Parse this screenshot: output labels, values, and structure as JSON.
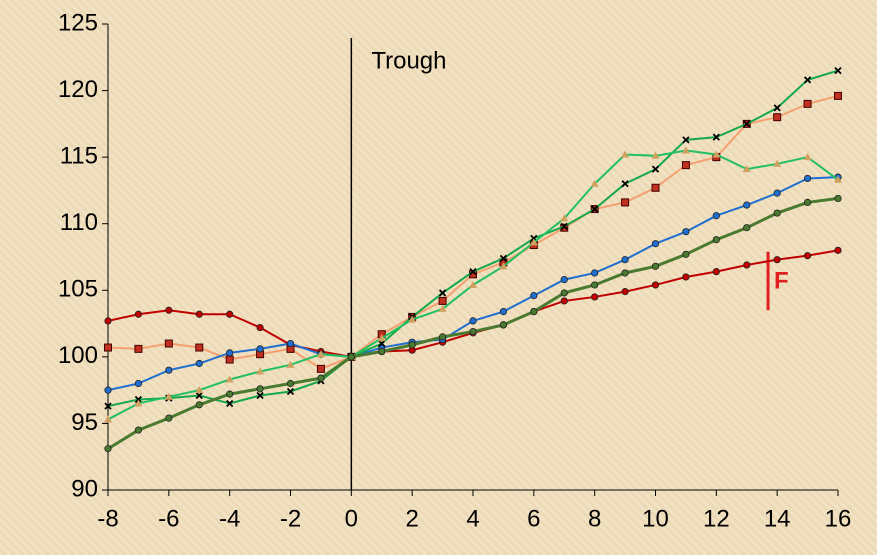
{
  "chart_data": {
    "type": "line",
    "x": [
      -8,
      -7,
      -6,
      -5,
      -4,
      -3,
      -2,
      -1,
      0,
      1,
      2,
      3,
      4,
      5,
      6,
      7,
      8,
      9,
      10,
      11,
      12,
      13,
      14,
      15,
      16
    ],
    "series": [
      {
        "color": "#c00000",
        "marker": "circle",
        "values": [
          102.7,
          103.2,
          103.5,
          103.2,
          103.2,
          102.2,
          100.9,
          100.4,
          100,
          100.4,
          100.5,
          101.1,
          101.8,
          102.4,
          103.4,
          104.2,
          104.5,
          104.9,
          105.4,
          106.0,
          106.4,
          106.9,
          107.3,
          107.6,
          108.0
        ]
      },
      {
        "color": "#f4a070",
        "marker": "square",
        "values": [
          100.7,
          100.6,
          101.0,
          100.7,
          99.8,
          100.2,
          100.6,
          99.1,
          100,
          101.7,
          103.0,
          104.2,
          106.2,
          107.1,
          108.4,
          109.7,
          111.1,
          111.6,
          112.7,
          114.4,
          115.0,
          117.5,
          118.0,
          119.0,
          119.6
        ]
      },
      {
        "color": "#1f6fd0",
        "marker": "circle",
        "values": [
          97.5,
          98.0,
          99.0,
          99.5,
          100.3,
          100.6,
          101.0,
          100.2,
          100,
          100.7,
          101.1,
          101.3,
          102.7,
          103.4,
          104.6,
          105.8,
          106.3,
          107.3,
          108.5,
          109.4,
          110.6,
          111.4,
          112.3,
          113.4,
          113.5
        ]
      },
      {
        "color": "#16a84a",
        "marker": "x",
        "values": [
          96.3,
          96.8,
          96.9,
          97.1,
          96.5,
          97.1,
          97.4,
          98.2,
          100,
          101.0,
          103.0,
          104.8,
          106.4,
          107.4,
          108.9,
          109.8,
          111.1,
          113.0,
          114.1,
          116.3,
          116.5,
          117.5,
          118.7,
          120.8,
          121.5
        ]
      },
      {
        "color": "#22c060",
        "marker": "triangle",
        "values": [
          95.3,
          96.5,
          97.0,
          97.5,
          98.3,
          98.9,
          99.4,
          100.2,
          100,
          101.4,
          102.8,
          103.6,
          105.4,
          106.8,
          108.6,
          110.4,
          113.0,
          115.2,
          115.1,
          115.5,
          115.2,
          114.1,
          114.5,
          115.0,
          113.3
        ]
      },
      {
        "color": "#4a7a30",
        "marker": "circle",
        "width": 3,
        "values": [
          93.1,
          94.5,
          95.4,
          96.4,
          97.2,
          97.6,
          98.0,
          98.4,
          100,
          100.4,
          100.9,
          101.5,
          101.9,
          102.4,
          103.4,
          104.8,
          105.4,
          106.3,
          106.8,
          107.7,
          108.8,
          109.7,
          110.8,
          111.6,
          111.9
        ]
      }
    ],
    "xlim": [
      -8,
      16
    ],
    "xticks": [
      -8,
      -6,
      -4,
      -2,
      0,
      2,
      4,
      6,
      8,
      10,
      12,
      14,
      16
    ],
    "ylim": [
      90,
      125
    ],
    "yticks": [
      90,
      95,
      100,
      105,
      110,
      115,
      120,
      125
    ],
    "annotations": [
      {
        "text": "Trough",
        "x": 0,
        "color": "#000000"
      },
      {
        "text": "F",
        "x": 13.7,
        "color": "#e02020"
      }
    ]
  }
}
